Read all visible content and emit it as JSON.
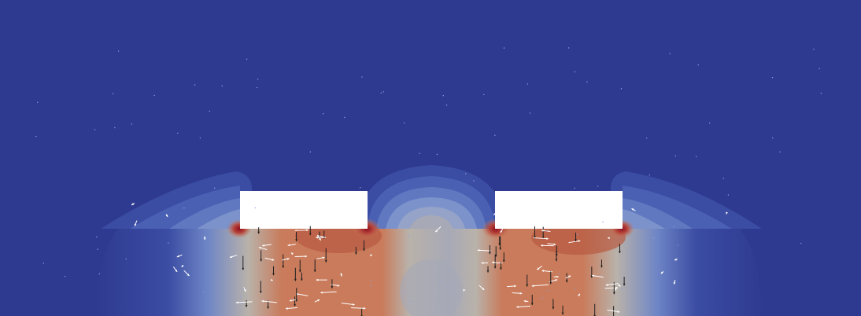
{
  "scene": {
    "kind": "field-simulation-contour",
    "background_color": "#2e3a8f",
    "colormap": [
      "#2e3a8f",
      "#3b4ca3",
      "#5068b7",
      "#6f86c6",
      "#95a3c8",
      "#b9b2aa",
      "#cf9f84",
      "#c97b5b",
      "#b5443a",
      "#8f0d1f"
    ],
    "electrode_color": "#ffffff",
    "arrow_colors": {
      "field_down": "#1f1f1f",
      "field_side": "#ffffff"
    },
    "electrode_count": 2
  }
}
